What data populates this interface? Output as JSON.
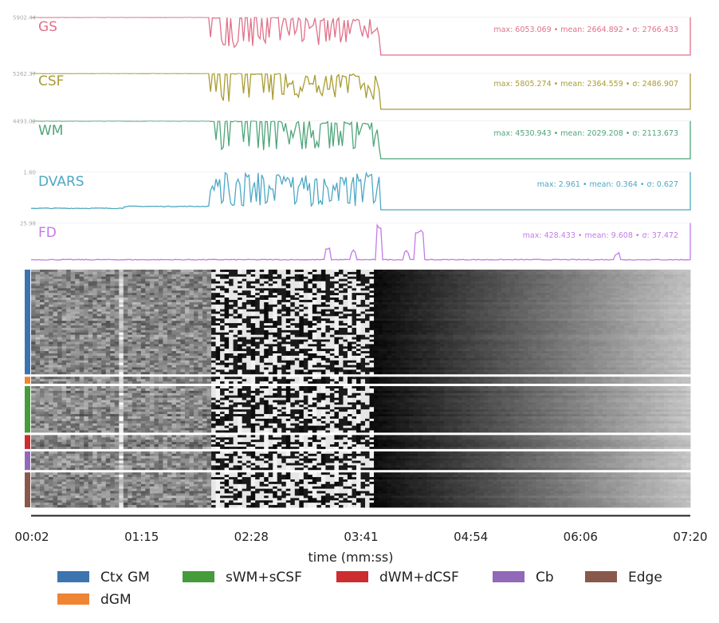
{
  "chart_data": {
    "type": "line",
    "traces": [
      {
        "name": "GS",
        "color": "#e0718a",
        "tick_label": "5902.44",
        "stats": "max: 6053.069 • mean: 2664.892 • σ: 2766.433",
        "shape": "signal",
        "baseline": 0.02,
        "high": 0.97
      },
      {
        "name": "CSF",
        "color": "#a99c34",
        "tick_label": "5262.37",
        "stats": "max: 5805.274 • mean: 2364.559 • σ: 2486.907",
        "shape": "signal",
        "baseline": 0.02,
        "high": 0.92
      },
      {
        "name": "WM",
        "color": "#4fa57a",
        "tick_label": "4493.02",
        "stats": "max: 4530.943 • mean: 2029.208 • σ: 2113.673",
        "shape": "signal",
        "baseline": 0.02,
        "high": 0.97
      },
      {
        "name": "DVARS",
        "color": "#4ea8c4",
        "tick_label": "1.60",
        "stats": "max: 2.961 • mean: 0.364 • σ: 0.627",
        "shape": "dvars",
        "baseline": 0.02,
        "high": 0.97
      },
      {
        "name": "FD",
        "color": "#c47ae8",
        "tick_label": "25.98",
        "stats": "max: 428.433 • mean: 9.608 • σ: 37.472",
        "shape": "fd",
        "baseline": 0.02,
        "high": 0.97
      }
    ],
    "x_ticks": [
      "00:02",
      "01:15",
      "02:28",
      "03:41",
      "04:54",
      "06:06",
      "07:20"
    ],
    "xlabel": "time (mm:ss)",
    "carpet": {
      "type": "heatmap",
      "colormap": "gray",
      "segments": [
        {
          "label": "Ctx GM",
          "color": "#3c74b0",
          "rows": 45
        },
        {
          "label": "dGM",
          "color": "#ee8533",
          "rows": 3
        },
        {
          "label": "sWM+sCSF",
          "color": "#469c3a",
          "rows": 20
        },
        {
          "label": "dWM+dCSF",
          "color": "#cc2d2f",
          "rows": 6
        },
        {
          "label": "Cb",
          "color": "#9268b9",
          "rows": 8
        },
        {
          "label": "Edge",
          "color": "#89584c",
          "rows": 15
        }
      ]
    },
    "legend": [
      {
        "label": "Ctx GM",
        "color": "#3c74b0"
      },
      {
        "label": "sWM+sCSF",
        "color": "#469c3a"
      },
      {
        "label": "dWM+dCSF",
        "color": "#cc2d2f"
      },
      {
        "label": "Cb",
        "color": "#9268b9"
      },
      {
        "label": "Edge",
        "color": "#89584c"
      },
      {
        "label": "dGM",
        "color": "#ee8533"
      }
    ]
  }
}
